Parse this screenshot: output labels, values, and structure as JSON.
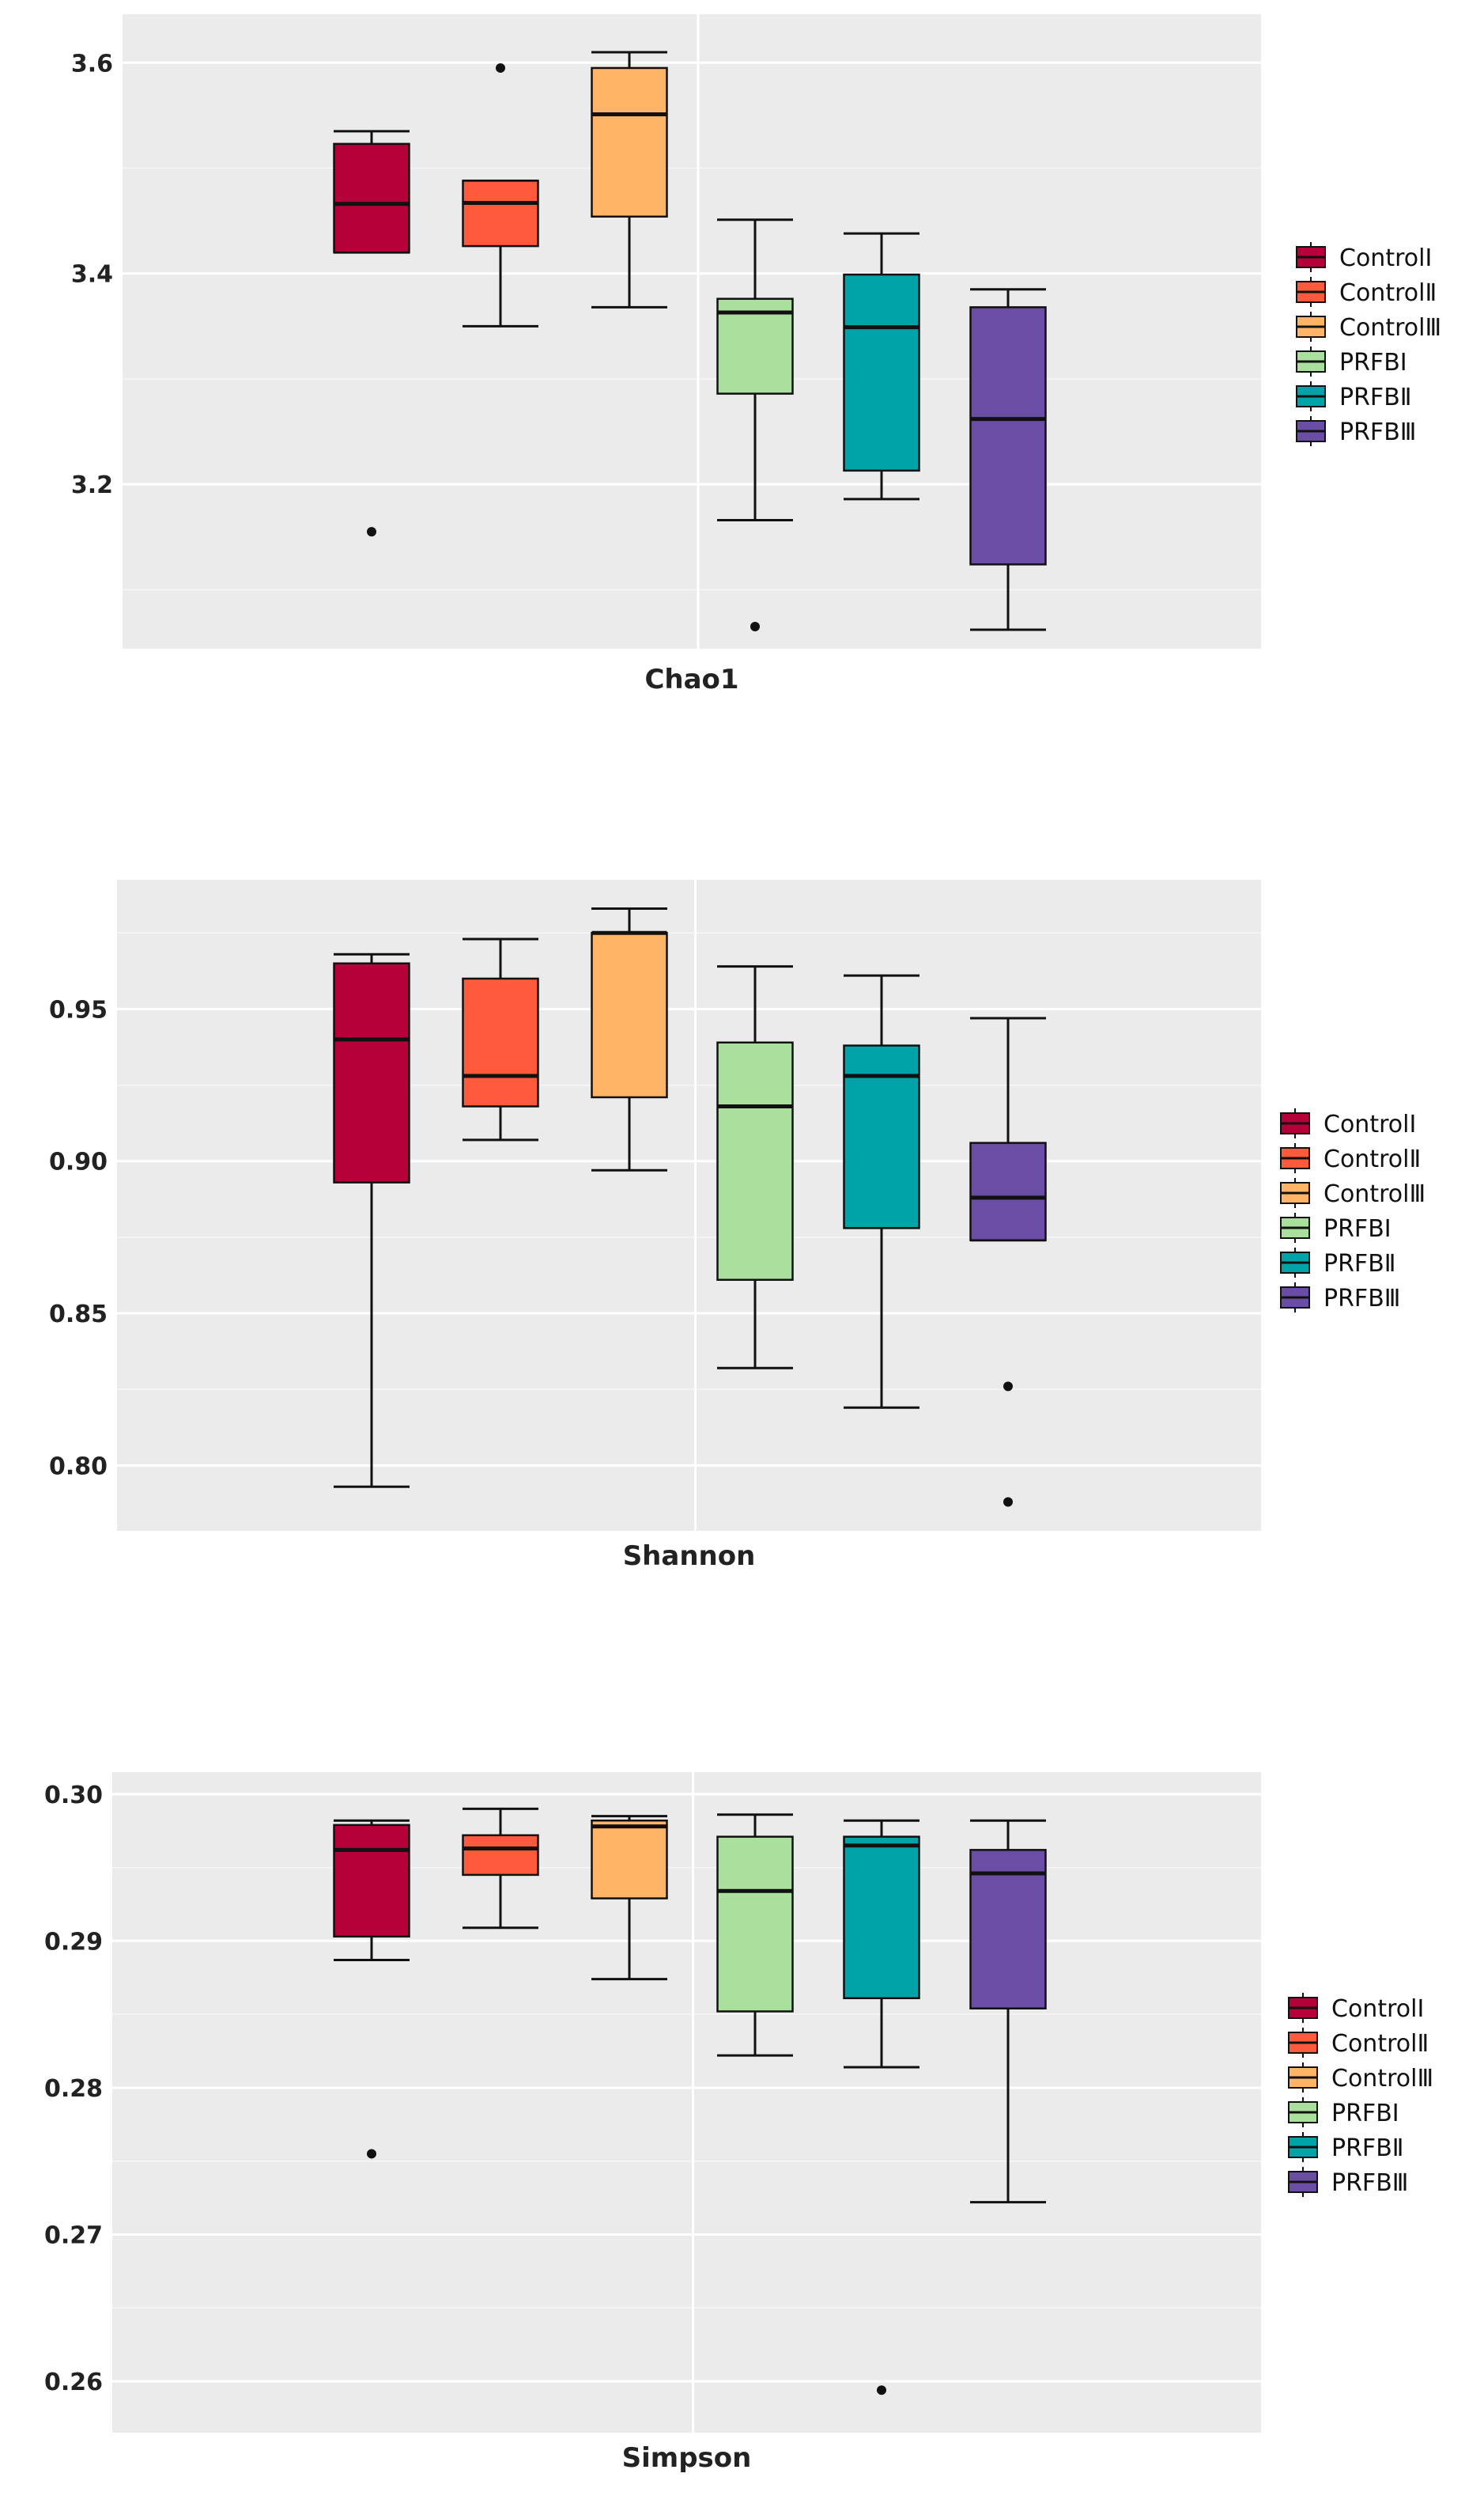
{
  "legend": [
    {
      "label": "ControlⅠ",
      "color": "#b5003a"
    },
    {
      "label": "ControlⅡ",
      "color": "#ff5a3c"
    },
    {
      "label": "ControlⅢ",
      "color": "#ffb565"
    },
    {
      "label": "PRFBⅠ",
      "color": "#abdf9d"
    },
    {
      "label": "PRFBⅡ",
      "color": "#00a3a7"
    },
    {
      "label": "PRFBⅢ",
      "color": "#6a4ea5"
    }
  ],
  "chart_data": [
    {
      "type": "box",
      "xlabel": "Chao1",
      "ylim": [
        3.044,
        3.646
      ],
      "yticks": [
        3.2,
        3.4,
        3.6
      ],
      "ytick_labels": [
        "3.2",
        "3.4",
        "3.6"
      ],
      "grid": true,
      "series": [
        {
          "name": "ControlⅠ",
          "whisker_low": 3.42,
          "q1": 3.42,
          "median": 3.466,
          "q3": 3.523,
          "whisker_high": 3.535,
          "outliers": [
            3.155
          ]
        },
        {
          "name": "ControlⅡ",
          "whisker_low": 3.35,
          "q1": 3.426,
          "median": 3.467,
          "q3": 3.488,
          "whisker_high": 3.488,
          "outliers": [
            3.595
          ]
        },
        {
          "name": "ControlⅢ",
          "whisker_low": 3.368,
          "q1": 3.454,
          "median": 3.551,
          "q3": 3.595,
          "whisker_high": 3.61,
          "outliers": []
        },
        {
          "name": "PRFBⅠ",
          "whisker_low": 3.166,
          "q1": 3.286,
          "median": 3.363,
          "q3": 3.376,
          "whisker_high": 3.451,
          "outliers": [
            3.065
          ]
        },
        {
          "name": "PRFBⅡ",
          "whisker_low": 3.186,
          "q1": 3.213,
          "median": 3.349,
          "q3": 3.399,
          "whisker_high": 3.438,
          "outliers": []
        },
        {
          "name": "PRFBⅢ",
          "whisker_low": 3.062,
          "q1": 3.124,
          "median": 3.262,
          "q3": 3.368,
          "whisker_high": 3.385,
          "outliers": []
        }
      ]
    },
    {
      "type": "box",
      "xlabel": "Shannon",
      "ylim": [
        0.7785,
        0.9925
      ],
      "yticks": [
        0.8,
        0.85,
        0.9,
        0.95
      ],
      "ytick_labels": [
        "0.80",
        "0.85",
        "0.90",
        "0.95"
      ],
      "grid": true,
      "series": [
        {
          "name": "ControlⅠ",
          "whisker_low": 0.793,
          "q1": 0.893,
          "median": 0.94,
          "q3": 0.965,
          "whisker_high": 0.968,
          "outliers": []
        },
        {
          "name": "ControlⅡ",
          "whisker_low": 0.907,
          "q1": 0.918,
          "median": 0.928,
          "q3": 0.96,
          "whisker_high": 0.973,
          "outliers": []
        },
        {
          "name": "ControlⅢ",
          "whisker_low": 0.897,
          "q1": 0.921,
          "median": 0.975,
          "q3": 0.975,
          "whisker_high": 0.983,
          "outliers": []
        },
        {
          "name": "PRFBⅠ",
          "whisker_low": 0.832,
          "q1": 0.861,
          "median": 0.918,
          "q3": 0.939,
          "whisker_high": 0.964,
          "outliers": []
        },
        {
          "name": "PRFBⅡ",
          "whisker_low": 0.819,
          "q1": 0.878,
          "median": 0.928,
          "q3": 0.938,
          "whisker_high": 0.961,
          "outliers": []
        },
        {
          "name": "PRFBⅢ",
          "whisker_low": 0.874,
          "q1": 0.874,
          "median": 0.888,
          "q3": 0.906,
          "whisker_high": 0.947,
          "outliers": [
            0.826,
            0.788
          ]
        }
      ]
    },
    {
      "type": "box",
      "xlabel": "Simpson",
      "ylim": [
        0.2565,
        0.3015
      ],
      "yticks": [
        0.26,
        0.27,
        0.28,
        0.29,
        0.3
      ],
      "ytick_labels": [
        "0.26",
        "0.27",
        "0.28",
        "0.29",
        "0.30"
      ],
      "grid": true,
      "series": [
        {
          "name": "ControlⅠ",
          "whisker_low": 0.2887,
          "q1": 0.2903,
          "median": 0.2962,
          "q3": 0.2979,
          "whisker_high": 0.2982,
          "outliers": [
            0.2755
          ]
        },
        {
          "name": "ControlⅡ",
          "whisker_low": 0.2909,
          "q1": 0.2945,
          "median": 0.2963,
          "q3": 0.2972,
          "whisker_high": 0.299,
          "outliers": []
        },
        {
          "name": "ControlⅢ",
          "whisker_low": 0.2874,
          "q1": 0.2929,
          "median": 0.2978,
          "q3": 0.2982,
          "whisker_high": 0.2985,
          "outliers": []
        },
        {
          "name": "PRFBⅠ",
          "whisker_low": 0.2822,
          "q1": 0.2852,
          "median": 0.2934,
          "q3": 0.2971,
          "whisker_high": 0.2986,
          "outliers": []
        },
        {
          "name": "PRFBⅡ",
          "whisker_low": 0.2814,
          "q1": 0.2861,
          "median": 0.2965,
          "q3": 0.2971,
          "whisker_high": 0.2982,
          "outliers": [
            0.2594
          ]
        },
        {
          "name": "PRFBⅢ",
          "whisker_low": 0.2722,
          "q1": 0.2854,
          "median": 0.2946,
          "q3": 0.2962,
          "whisker_high": 0.2982,
          "outliers": []
        }
      ]
    }
  ]
}
